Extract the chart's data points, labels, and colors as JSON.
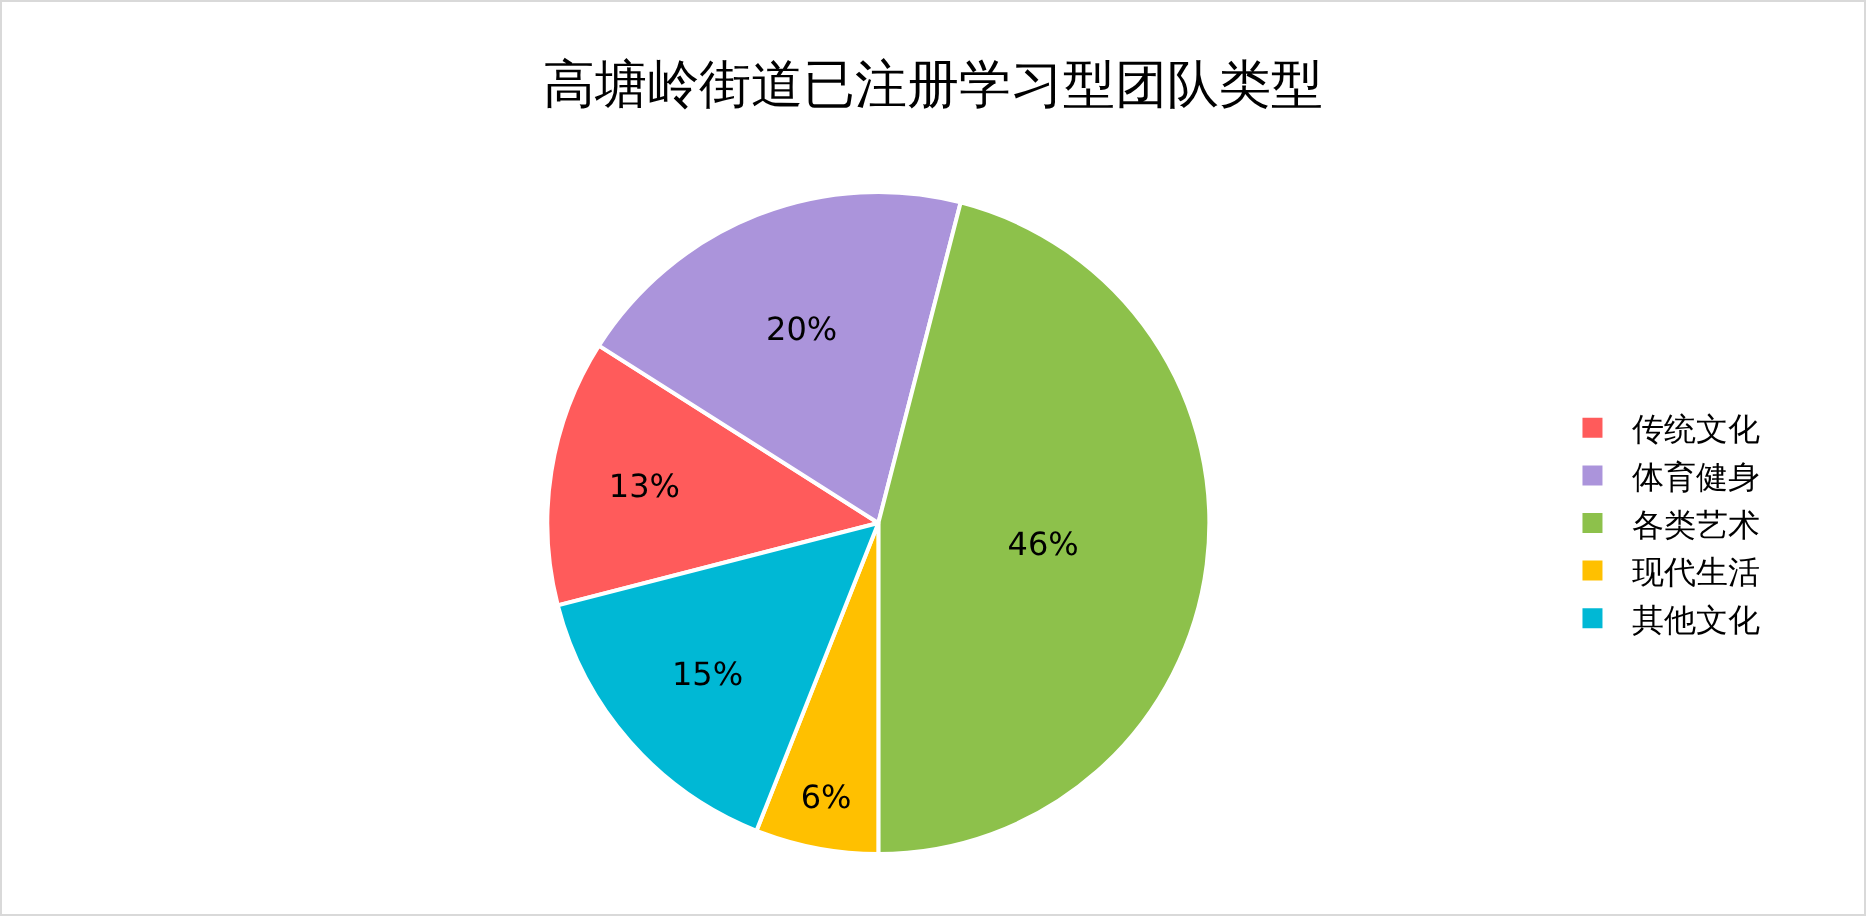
{
  "chart_data": {
    "type": "pie",
    "title": "高塘岭街道已注册学习型团队类型",
    "categories": [
      "传统文化",
      "体育健身",
      "各类艺术",
      "现代生活",
      "其他文化"
    ],
    "values": [
      13,
      20,
      46,
      6,
      15
    ],
    "colors": [
      "#ff5b5b",
      "#ab94db",
      "#8dc14b",
      "#ffc000",
      "#00b8d5"
    ],
    "value_labels": [
      "13%",
      "20%",
      "46%",
      "6%",
      "15%"
    ],
    "legend": "right"
  }
}
